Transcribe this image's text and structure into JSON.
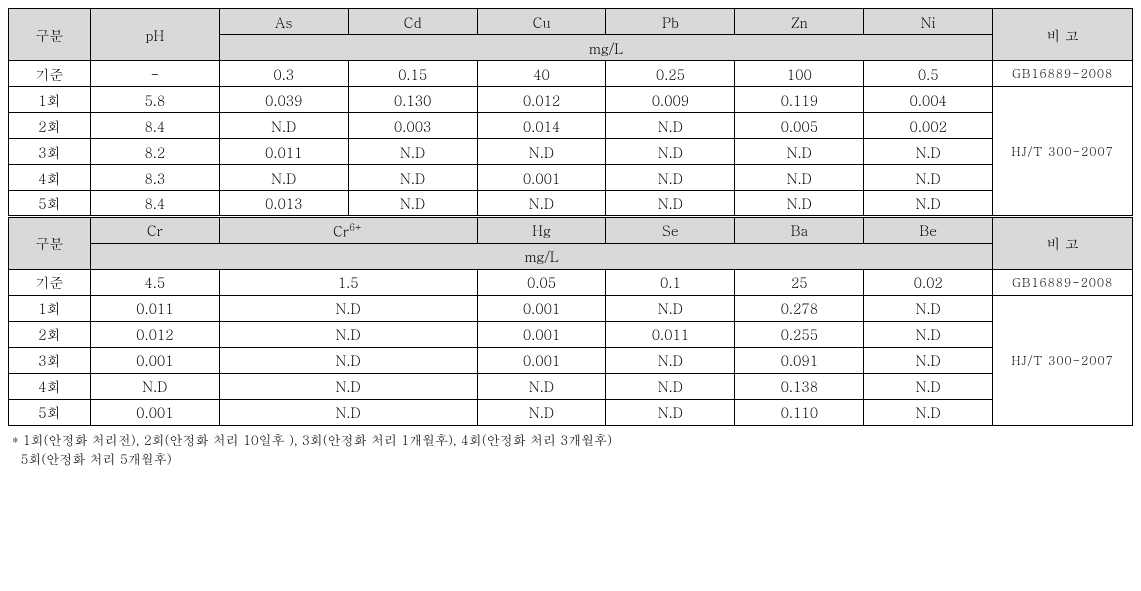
{
  "table1": {
    "header": {
      "gubun": "구분",
      "ph": "pH",
      "cols": [
        "As",
        "Cd",
        "Cu",
        "Pb",
        "Zn",
        "Ni"
      ],
      "unit": "mg/L",
      "bigo": "비  고"
    },
    "standard_label": "기준",
    "standard_values": [
      "-",
      "0.3",
      "0.15",
      "40",
      "0.25",
      "100",
      "0.5"
    ],
    "standard_note": "GB16889-2008",
    "rows": [
      {
        "label": "1회",
        "vals": [
          "5.8",
          "0.039",
          "0.130",
          "0.012",
          "0.009",
          "0.119",
          "0.004"
        ]
      },
      {
        "label": "2회",
        "vals": [
          "8.4",
          "N.D",
          "0.003",
          "0.014",
          "N.D",
          "0.005",
          "0.002"
        ]
      },
      {
        "label": "3회",
        "vals": [
          "8.2",
          "0.011",
          "N.D",
          "N.D",
          "N.D",
          "N.D",
          "N.D"
        ]
      },
      {
        "label": "4회",
        "vals": [
          "8.3",
          "N.D",
          "N.D",
          "0.001",
          "N.D",
          "N.D",
          "N.D"
        ]
      },
      {
        "label": "5회",
        "vals": [
          "8.4",
          "0.013",
          "N.D",
          "N.D",
          "N.D",
          "N.D",
          "N.D"
        ]
      }
    ],
    "rows_note": "HJ/T 300-2007"
  },
  "table2": {
    "header": {
      "gubun": "구분",
      "cols": [
        "Cr",
        "Cr⁶⁺",
        "Hg",
        "Se",
        "Ba",
        "Be"
      ],
      "cr6_base": "Cr",
      "cr6_sup": "6+",
      "unit": "mg/L",
      "bigo": "비  고"
    },
    "standard_label": "기준",
    "standard_values": [
      "4.5",
      "1.5",
      "0.05",
      "0.1",
      "25",
      "0.02"
    ],
    "standard_note": "GB16889-2008",
    "rows": [
      {
        "label": "1회",
        "vals": [
          "0.011",
          "N.D",
          "0.001",
          "N.D",
          "0.278",
          "N.D"
        ]
      },
      {
        "label": "2회",
        "vals": [
          "0.012",
          "N.D",
          "0.001",
          "0.011",
          "0.255",
          "N.D"
        ]
      },
      {
        "label": "3회",
        "vals": [
          "0.001",
          "N.D",
          "0.001",
          "N.D",
          "0.091",
          "N.D"
        ]
      },
      {
        "label": "4회",
        "vals": [
          "N.D",
          "N.D",
          "N.D",
          "N.D",
          "0.138",
          "N.D"
        ]
      },
      {
        "label": "5회",
        "vals": [
          "0.001",
          "N.D",
          "N.D",
          "N.D",
          "0.110",
          "N.D"
        ]
      }
    ],
    "rows_note": "HJ/T 300-2007"
  },
  "footer": {
    "line1": "* 1회(안정화 처리전), 2회(안정화 처리 10일후 ), 3회(안정화 처리 1개월후), 4회(안정화 처리 3개월후)",
    "line2": "  5회(안정화 처리 5개월후)"
  },
  "styles": {
    "header_bg": "#d9d9d9",
    "border_color": "#000000",
    "text_color": "#000000",
    "font_size": 14,
    "note_font_size": 12,
    "footer_font_size": 13
  }
}
